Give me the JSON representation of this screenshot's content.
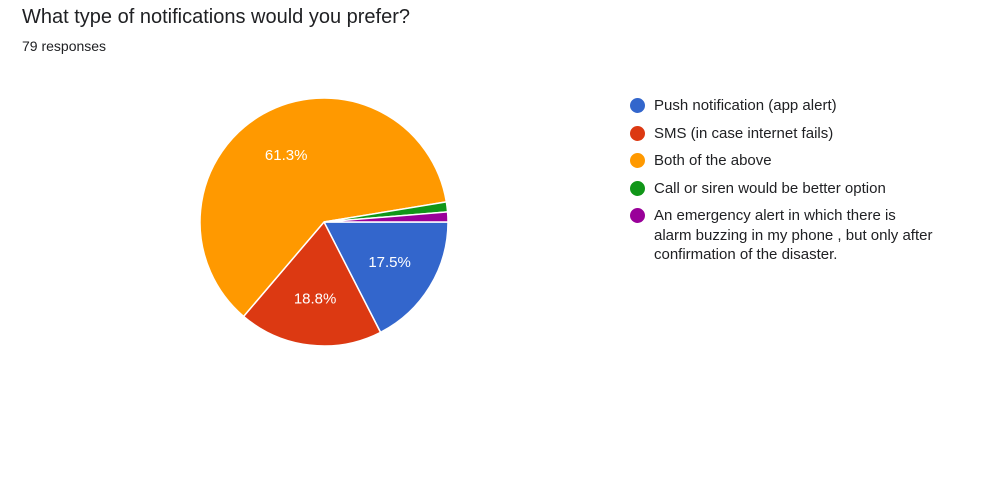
{
  "header": {
    "title": "What type of notifications would you prefer?",
    "subtitle": "79 responses"
  },
  "chart_data": {
    "type": "pie",
    "title": "What type of notifications would you prefer?",
    "subtitle": "79 responses",
    "legend_position": "right",
    "slices": [
      {
        "label": "Push notification (app alert)",
        "value": 17.5,
        "display": "17.5%",
        "color": "#3366cc"
      },
      {
        "label": "SMS (in case internet fails)",
        "value": 18.8,
        "display": "18.8%",
        "color": "#dc3912"
      },
      {
        "label": "Both of the above",
        "value": 61.3,
        "display": "61.3%",
        "color": "#ff9900"
      },
      {
        "label": "Call or siren would be better option",
        "value": 1.3,
        "display": "",
        "color": "#109618"
      },
      {
        "label": "An emergency alert in which there is alarm buzzing in my phone , but only after confirmation of the disaster.",
        "value": 1.3,
        "display": "",
        "color": "#990099"
      }
    ]
  }
}
